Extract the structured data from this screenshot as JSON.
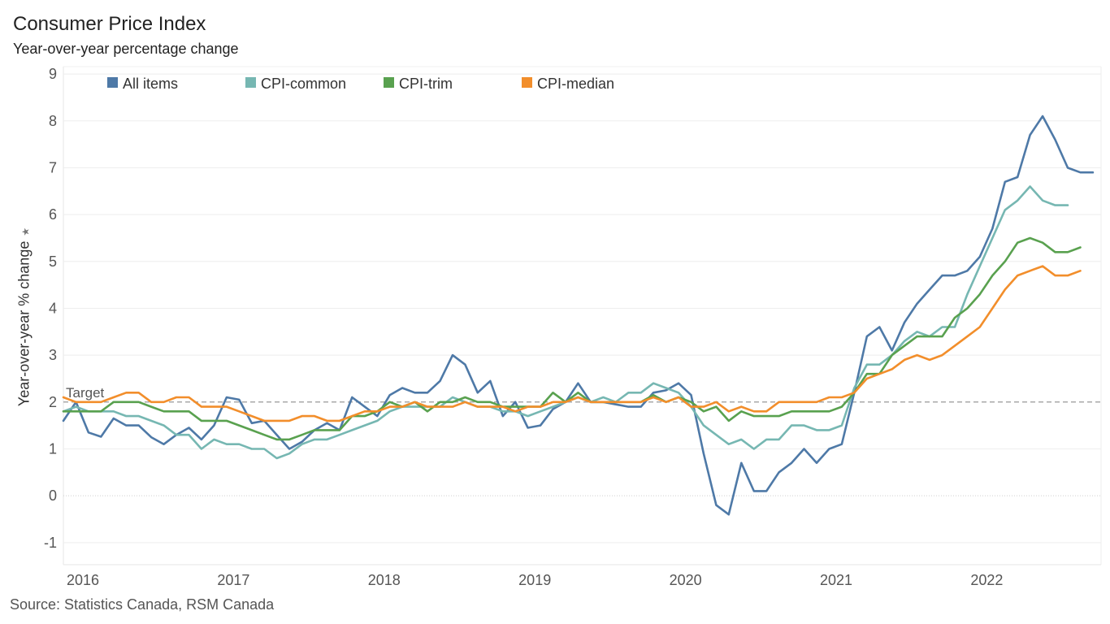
{
  "title": "Consumer Price Index",
  "subtitle": "Year-over-year percentage change",
  "source": "Source: Statistics Canada, RSM Canada",
  "chart_data": {
    "type": "line",
    "title": "Consumer Price Index",
    "subtitle": "Year-over-year percentage change",
    "xlabel": "",
    "ylabel": "Year-over-year % change",
    "ylim": [
      -1.4,
      9.2
    ],
    "yticks": [
      -1,
      0,
      1,
      2,
      3,
      4,
      5,
      6,
      7,
      8,
      9
    ],
    "xticks": [
      "2016",
      "2017",
      "2018",
      "2019",
      "2020",
      "2021",
      "2022"
    ],
    "x_start": "2016-01",
    "x_end": "2022-11",
    "grid": true,
    "legend_position": "top",
    "target": {
      "label": "Target",
      "value": 2
    },
    "series": [
      {
        "name": "All items",
        "color": "#4e79a7",
        "values": [
          1.6,
          2.0,
          1.35,
          1.26,
          1.65,
          1.5,
          1.5,
          1.25,
          1.1,
          1.3,
          1.45,
          1.2,
          1.5,
          2.1,
          2.05,
          1.55,
          1.6,
          1.3,
          1.0,
          1.15,
          1.4,
          1.55,
          1.4,
          2.1,
          1.9,
          1.7,
          2.15,
          2.3,
          2.2,
          2.2,
          2.45,
          3.0,
          2.8,
          2.2,
          2.45,
          1.7,
          2.0,
          1.45,
          1.5,
          1.85,
          2.0,
          2.4,
          2.0,
          2.0,
          1.95,
          1.9,
          1.9,
          2.2,
          2.25,
          2.4,
          2.15,
          0.9,
          -0.2,
          -0.4,
          0.7,
          0.1,
          0.1,
          0.5,
          0.7,
          1.0,
          0.7,
          1.0,
          1.1,
          2.2,
          3.4,
          3.6,
          3.1,
          3.7,
          4.1,
          4.4,
          4.7,
          4.7,
          4.8,
          5.1,
          5.7,
          6.7,
          6.8,
          7.7,
          8.1,
          7.6,
          7.0,
          6.9,
          6.9
        ]
      },
      {
        "name": "CPI-common",
        "color": "#76b7b2",
        "values": [
          1.8,
          1.9,
          1.8,
          1.8,
          1.8,
          1.7,
          1.7,
          1.6,
          1.5,
          1.3,
          1.3,
          1.0,
          1.2,
          1.1,
          1.1,
          1.0,
          1.0,
          0.8,
          0.9,
          1.1,
          1.2,
          1.2,
          1.3,
          1.4,
          1.5,
          1.6,
          1.8,
          1.9,
          1.9,
          1.9,
          1.9,
          2.1,
          2.0,
          1.9,
          1.9,
          1.8,
          1.8,
          1.7,
          1.8,
          1.9,
          2.0,
          2.1,
          2.0,
          2.1,
          2.0,
          2.2,
          2.2,
          2.4,
          2.3,
          2.2,
          1.9,
          1.5,
          1.3,
          1.1,
          1.2,
          1.0,
          1.2,
          1.2,
          1.5,
          1.5,
          1.4,
          1.4,
          1.5,
          2.3,
          2.8,
          2.8,
          3.0,
          3.3,
          3.5,
          3.4,
          3.6,
          3.6,
          4.3,
          4.9,
          5.5,
          6.1,
          6.3,
          6.6,
          6.3,
          6.2,
          6.2
        ]
      },
      {
        "name": "CPI-trim",
        "color": "#59a14f",
        "values": [
          1.8,
          1.8,
          1.8,
          1.8,
          2.0,
          2.0,
          2.0,
          1.9,
          1.8,
          1.8,
          1.8,
          1.6,
          1.6,
          1.6,
          1.5,
          1.4,
          1.3,
          1.2,
          1.2,
          1.3,
          1.4,
          1.4,
          1.4,
          1.7,
          1.7,
          1.8,
          2.0,
          1.9,
          2.0,
          1.8,
          2.0,
          2.0,
          2.1,
          2.0,
          2.0,
          1.9,
          1.9,
          1.9,
          1.9,
          2.2,
          2.0,
          2.2,
          2.0,
          2.0,
          2.0,
          2.0,
          2.0,
          2.15,
          2.0,
          2.1,
          2.0,
          1.8,
          1.9,
          1.6,
          1.8,
          1.7,
          1.7,
          1.7,
          1.8,
          1.8,
          1.8,
          1.8,
          1.9,
          2.2,
          2.6,
          2.6,
          3.0,
          3.2,
          3.4,
          3.4,
          3.4,
          3.8,
          4.0,
          4.3,
          4.7,
          5.0,
          5.4,
          5.5,
          5.4,
          5.2,
          5.2,
          5.3
        ]
      },
      {
        "name": "CPI-median",
        "color": "#f28e2b",
        "values": [
          2.1,
          2.0,
          2.0,
          2.0,
          2.1,
          2.2,
          2.2,
          2.0,
          2.0,
          2.1,
          2.1,
          1.9,
          1.9,
          1.9,
          1.8,
          1.7,
          1.6,
          1.6,
          1.6,
          1.7,
          1.7,
          1.6,
          1.6,
          1.7,
          1.8,
          1.8,
          1.9,
          1.9,
          2.0,
          1.9,
          1.9,
          1.9,
          2.0,
          1.9,
          1.9,
          1.9,
          1.8,
          1.9,
          1.9,
          2.0,
          2.0,
          2.1,
          2.0,
          2.0,
          2.0,
          2.0,
          2.0,
          2.1,
          2.0,
          2.1,
          1.9,
          1.9,
          2.0,
          1.8,
          1.9,
          1.8,
          1.8,
          2.0,
          2.0,
          2.0,
          2.0,
          2.1,
          2.1,
          2.2,
          2.5,
          2.6,
          2.7,
          2.9,
          3.0,
          2.9,
          3.0,
          3.2,
          3.4,
          3.6,
          4.0,
          4.4,
          4.7,
          4.8,
          4.9,
          4.7,
          4.7,
          4.8
        ]
      }
    ]
  }
}
